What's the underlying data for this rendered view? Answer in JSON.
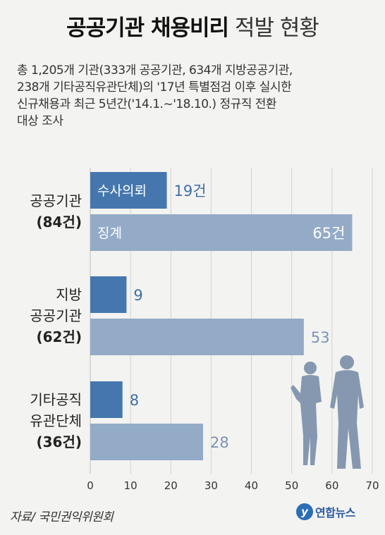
{
  "header": {
    "title_bold": "공공기관 채용비리",
    "title_light": "적발 현황"
  },
  "description": [
    "총 1,205개 기관(333개 공공기관, 634개 지방공공기관,",
    "238개 기타공직유관단체)의 '17년 특별점검 이후 실시한",
    "신규채용과 최근 5년간('14.1.~'18.10.) 정규직 전환",
    "대상 조사"
  ],
  "source": "자료/ 국민권익위원회",
  "logo": {
    "mark": "y",
    "name": "연합뉴스"
  },
  "chart_data": {
    "type": "bar",
    "orientation": "horizontal",
    "categories": [
      {
        "lines": [
          "공공기관"
        ],
        "count": "(84건)"
      },
      {
        "lines": [
          "지방",
          "공공기관"
        ],
        "count": "(62건)"
      },
      {
        "lines": [
          "기타공직",
          "유관단체"
        ],
        "count": "(36건)"
      }
    ],
    "series": [
      {
        "name": "수사의뢰",
        "values": [
          19,
          9,
          8
        ],
        "labels": [
          "19건",
          "9",
          "8"
        ],
        "color": "#4577ae"
      },
      {
        "name": "징계",
        "values": [
          65,
          53,
          28
        ],
        "labels": [
          "65건",
          "53",
          "28"
        ],
        "color": "#94abc8"
      }
    ],
    "xlim": [
      0,
      70
    ],
    "xticks": [
      0,
      10,
      20,
      30,
      40,
      50,
      60,
      70
    ],
    "grid": true,
    "legend": "inside-bars"
  },
  "colors": {
    "bar_dark": "#4577ae",
    "bar_light": "#94abc8",
    "value_dark": "#3e6fa6",
    "value_light": "#7d92b0",
    "silhouette": "#8598b0"
  }
}
